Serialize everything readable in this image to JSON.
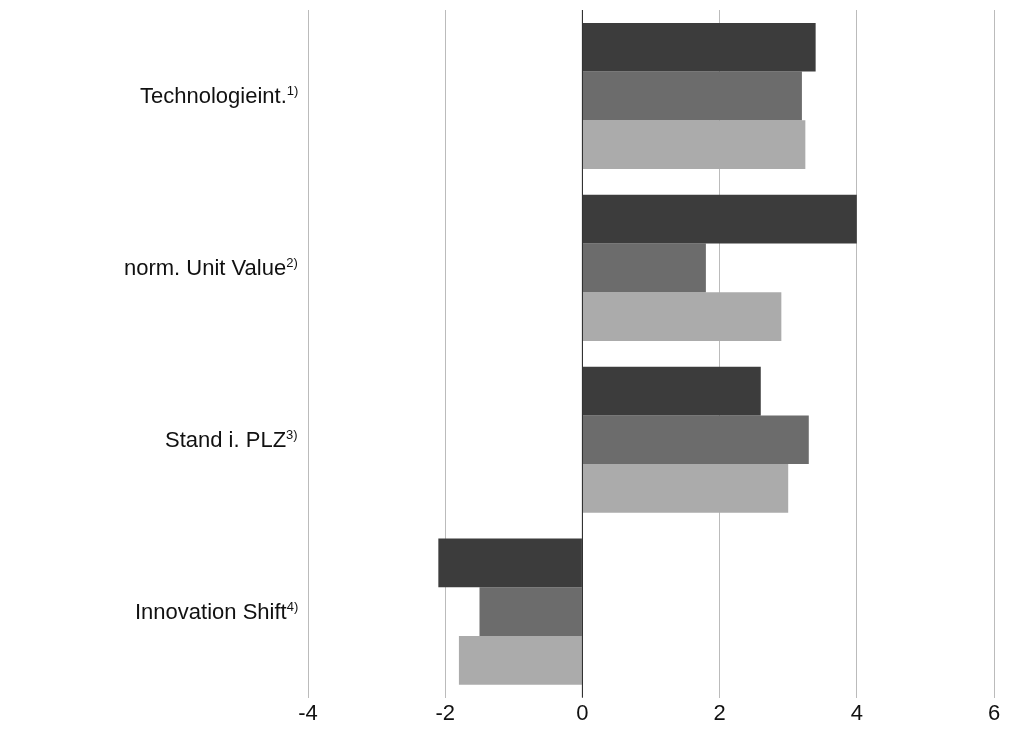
{
  "chart_data": {
    "type": "bar",
    "orientation": "horizontal",
    "categories": [
      "Technologieint.$^{1)}$",
      "norm. Unit Value$^{2)}$",
      "Stand i. PLZ$^{3)}$",
      "Innovation Shift$^{4)}$"
    ],
    "series": [
      {
        "color": "#3c3c3c",
        "values": [
          3.4,
          4.0,
          2.6,
          -2.1
        ]
      },
      {
        "color": "#6c6c6c",
        "values": [
          3.2,
          1.8,
          3.3,
          -1.5
        ]
      },
      {
        "color": "#ababab",
        "values": [
          3.25,
          2.9,
          3.0,
          -1.8
        ]
      }
    ],
    "xlim": [
      -4,
      6
    ],
    "xticks": [
      -4,
      -2,
      0,
      2,
      4,
      6
    ],
    "grid": "x",
    "legend": false
  }
}
